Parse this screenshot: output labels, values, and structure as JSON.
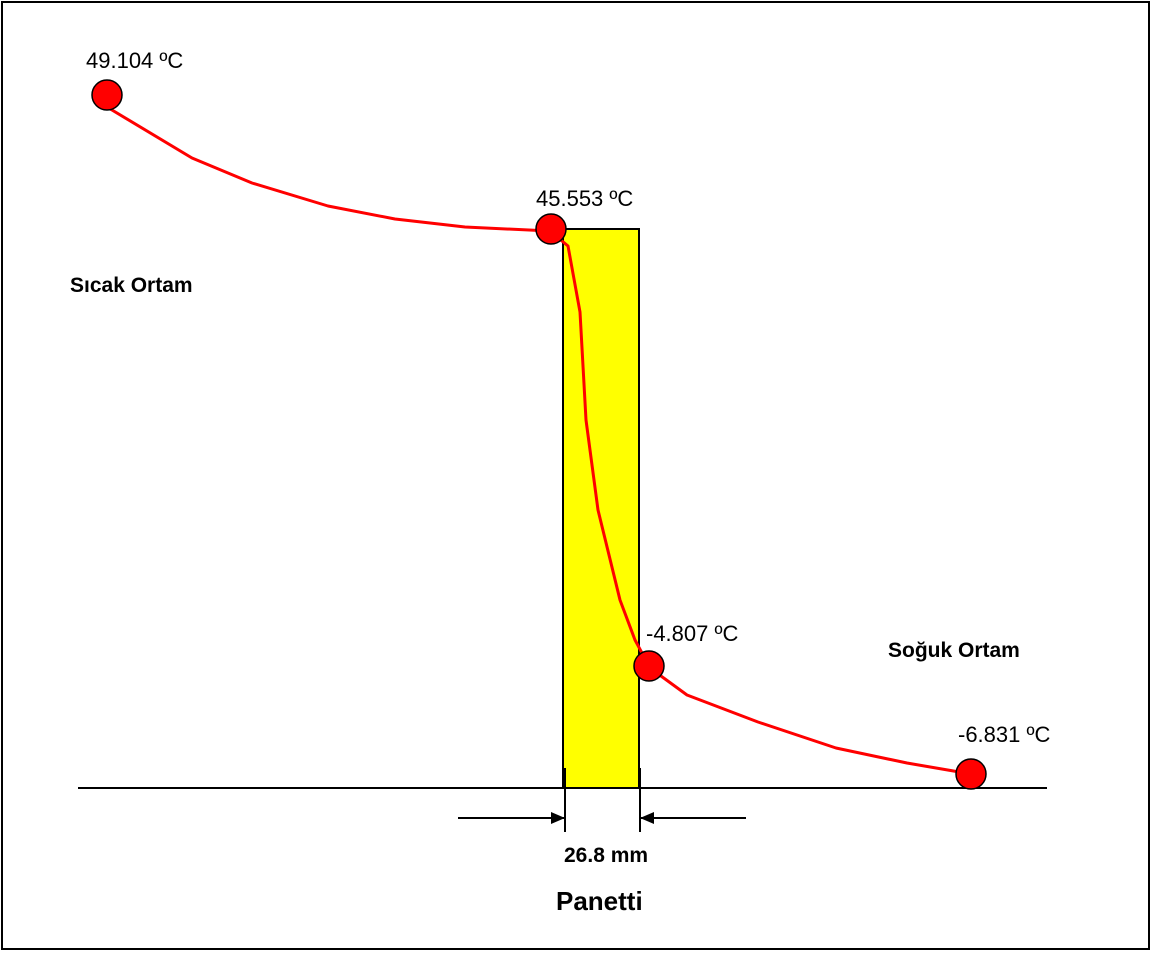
{
  "diagram": {
    "points": [
      {
        "id": "p1",
        "label": "49.104 ºC",
        "value": 49.104
      },
      {
        "id": "p2",
        "label": "45.553 ºC",
        "value": 45.553
      },
      {
        "id": "p3",
        "label": "-4.807 ºC",
        "value": -4.807
      },
      {
        "id": "p4",
        "label": "-6.831 ºC",
        "value": -6.831
      }
    ],
    "hot_side_label": "Sıcak Ortam",
    "cold_side_label": "Soğuk Ortam",
    "thickness_label": "26.8 mm",
    "panel_label": "Panetti",
    "colors": {
      "panel_fill": "#ffff00",
      "curve": "#ff0000",
      "point_fill": "#ff0000",
      "outline": "#000000"
    }
  }
}
